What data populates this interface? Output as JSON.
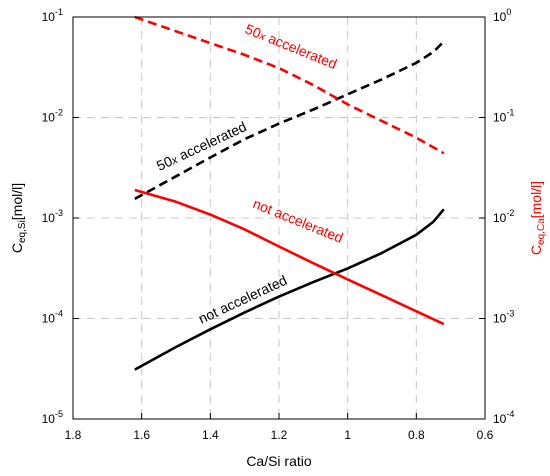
{
  "chart_data": {
    "type": "line",
    "xlabel": "Ca/Si ratio",
    "ylabel_left": {
      "main": "C",
      "sub": "eq,Si",
      "rest": "[mol/l]"
    },
    "ylabel_right": {
      "main": "C",
      "sub": "eq,Ca",
      "rest": "[mol/l]"
    },
    "x_axis": {
      "reversed": true,
      "xlim": [
        1.8,
        0.6
      ],
      "ticks": [
        1.8,
        1.6,
        1.4,
        1.2,
        1,
        0.8,
        0.6
      ],
      "tick_labels": [
        "1.8",
        "1.6",
        "1.4",
        "1.2",
        "1",
        "0.8",
        "0.6"
      ]
    },
    "y_left": {
      "scale": "log",
      "ylim": [
        1e-05,
        0.1
      ],
      "ticks": [
        1e-05,
        0.0001,
        0.001,
        0.01,
        0.1
      ],
      "tick_labels": [
        {
          "base": "10",
          "exp": "-5"
        },
        {
          "base": "10",
          "exp": "-4"
        },
        {
          "base": "10",
          "exp": "-3"
        },
        {
          "base": "10",
          "exp": "-2"
        },
        {
          "base": "10",
          "exp": "-1"
        }
      ]
    },
    "y_right": {
      "scale": "log",
      "ylim": [
        0.0001,
        1
      ],
      "ticks": [
        0.0001,
        0.001,
        0.01,
        0.1,
        1
      ],
      "tick_labels": [
        {
          "base": "10",
          "exp": "-4"
        },
        {
          "base": "10",
          "exp": "-3"
        },
        {
          "base": "10",
          "exp": "-2"
        },
        {
          "base": "10",
          "exp": "-1"
        },
        {
          "base": "10",
          "exp": "0"
        }
      ],
      "color": "#ff0000"
    },
    "grid": true,
    "series": [
      {
        "axis": "left",
        "color": "#000000",
        "style": "solid",
        "x": [
          1.62,
          1.5,
          1.4,
          1.3,
          1.2,
          1.1,
          1.0,
          0.9,
          0.8,
          0.75,
          0.72
        ],
        "y": [
          3.1e-05,
          5.2e-05,
          7.8e-05,
          0.000115,
          0.000165,
          0.00023,
          0.000315,
          0.00045,
          0.00068,
          0.00092,
          0.00122
        ]
      },
      {
        "axis": "left",
        "color": "#000000",
        "style": "dashed",
        "x": [
          1.62,
          1.5,
          1.4,
          1.3,
          1.2,
          1.1,
          1.0,
          0.9,
          0.8,
          0.75,
          0.72
        ],
        "y": [
          0.00155,
          0.0026,
          0.004,
          0.0061,
          0.0087,
          0.012,
          0.017,
          0.024,
          0.035,
          0.045,
          0.057
        ]
      },
      {
        "axis": "right",
        "color": "#ff0000",
        "style": "solid",
        "x": [
          1.62,
          1.5,
          1.4,
          1.3,
          1.2,
          1.1,
          1.0,
          0.9,
          0.8,
          0.72
        ],
        "y": [
          0.019,
          0.0145,
          0.0108,
          0.0077,
          0.0052,
          0.00355,
          0.00245,
          0.0017,
          0.00118,
          0.00088
        ]
      },
      {
        "axis": "right",
        "color": "#ff0000",
        "style": "dashed",
        "x": [
          1.62,
          1.5,
          1.4,
          1.3,
          1.2,
          1.1,
          1.0,
          0.9,
          0.8,
          0.72
        ],
        "y": [
          1.0,
          0.72,
          0.55,
          0.42,
          0.31,
          0.21,
          0.135,
          0.092,
          0.063,
          0.044
        ]
      }
    ],
    "annotations": [
      {
        "text_main": "50",
        "text_italic": "x",
        "text_rest": " accelerated",
        "color": "#ff0000",
        "x": 1.17,
        "y_left": 0.046,
        "angle": 22
      },
      {
        "text_main": "50",
        "text_italic": "x",
        "text_rest": " accelerated",
        "color": "#000000",
        "x": 1.42,
        "y_left": 0.0047,
        "angle": -25
      },
      {
        "text_main": "not accelerated",
        "color": "#ff0000",
        "x": 1.15,
        "y_left": 0.00085,
        "angle": 22
      },
      {
        "text_main": "not accelerated",
        "color": "#000000",
        "x": 1.3,
        "y_left": 0.00014,
        "angle": -25
      }
    ]
  }
}
